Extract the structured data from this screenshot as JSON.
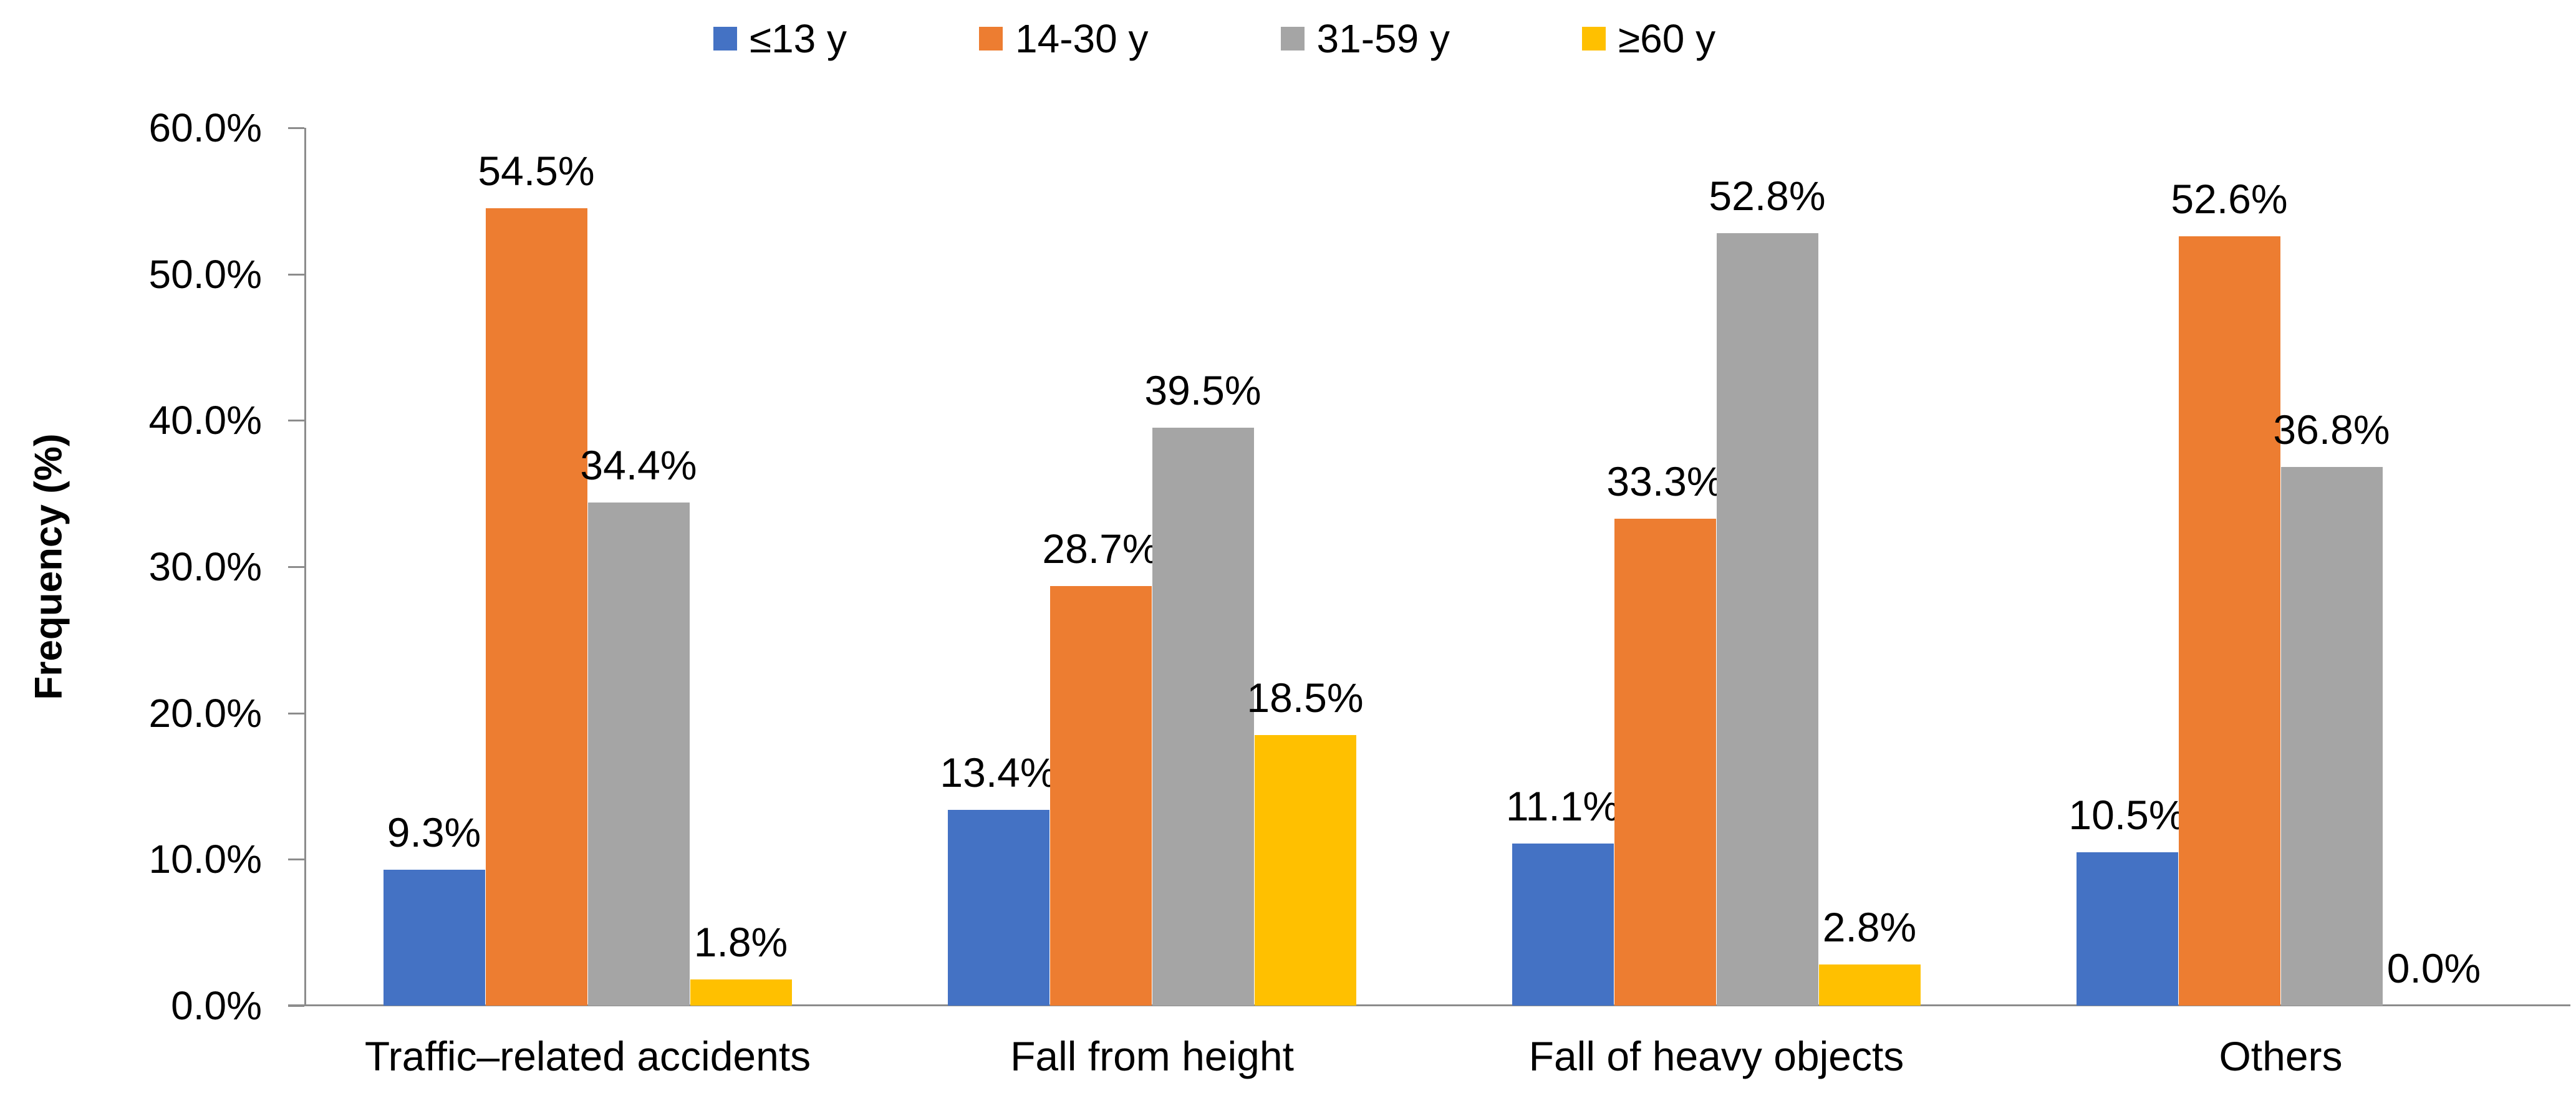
{
  "colors": {
    "series_blue": "#4472C4",
    "series_orange": "#ED7D31",
    "series_gray": "#A5A5A5",
    "series_yellow": "#FFC000",
    "axis": "#8C8C8C",
    "text": "#000000"
  },
  "chart_data": {
    "type": "bar",
    "title": "",
    "xlabel": "",
    "ylabel": "Frequency (%)",
    "ylim": [
      0,
      60
    ],
    "grid": false,
    "legend_position": "top",
    "yticks": [
      {
        "value": 0,
        "label": "0.0%"
      },
      {
        "value": 10,
        "label": "10.0%"
      },
      {
        "value": 20,
        "label": "20.0%"
      },
      {
        "value": 30,
        "label": "30.0%"
      },
      {
        "value": 40,
        "label": "40.0%"
      },
      {
        "value": 50,
        "label": "50.0%"
      },
      {
        "value": 60,
        "label": "60.0%"
      }
    ],
    "categories": [
      "Traffic–related accidents",
      "Fall from height",
      "Fall of heavy objects",
      "Others"
    ],
    "series": [
      {
        "name": "≤13 y",
        "color": "#4472C4",
        "values": [
          9.3,
          13.4,
          11.1,
          10.5
        ],
        "labels": [
          "9.3%",
          "13.4%",
          "11.1%",
          "10.5%"
        ]
      },
      {
        "name": "14-30 y",
        "color": "#ED7D31",
        "values": [
          54.5,
          28.7,
          33.3,
          52.6
        ],
        "labels": [
          "54.5%",
          "28.7%",
          "33.3%",
          "52.6%"
        ]
      },
      {
        "name": "31-59 y",
        "color": "#A5A5A5",
        "values": [
          34.4,
          39.5,
          52.8,
          36.8
        ],
        "labels": [
          "34.4%",
          "39.5%",
          "52.8%",
          "36.8%"
        ]
      },
      {
        "name": "≥60 y",
        "color": "#FFC000",
        "values": [
          1.8,
          18.5,
          2.8,
          0.0
        ],
        "labels": [
          "1.8%",
          "18.5%",
          "2.8%",
          "0.0%"
        ]
      }
    ]
  }
}
